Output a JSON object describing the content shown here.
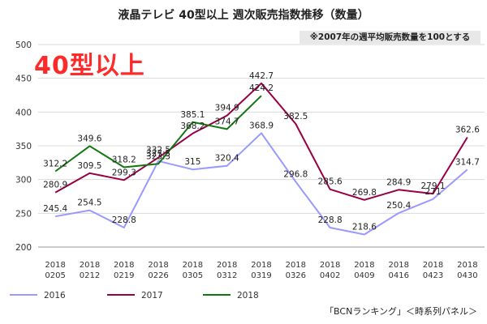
{
  "title": "液晶テレビ 40型以上 週次販売指数推移（数量）",
  "note": "※2007年の週平均販売数量を100とする",
  "big_label": "40型以上",
  "source": "「BCNランキング」＜時系列パネル＞",
  "colors": {
    "2016": "#9999ff",
    "2017": "#990044",
    "2018": "#117711",
    "grid": "#d9d9d9",
    "axis": "#999999"
  },
  "chart_data": {
    "type": "line",
    "title": "液晶テレビ 40型以上 週次販売指数推移（数量）",
    "xlabel": "",
    "ylabel": "",
    "ylim": [
      200,
      500
    ],
    "yticks": [
      200,
      250,
      300,
      350,
      400,
      450,
      500
    ],
    "grid": true,
    "legend": "bottom",
    "categories": [
      [
        "2018",
        "0205"
      ],
      [
        "2018",
        "0212"
      ],
      [
        "2018",
        "0219"
      ],
      [
        "2018",
        "0226"
      ],
      [
        "2018",
        "0305"
      ],
      [
        "2018",
        "0312"
      ],
      [
        "2018",
        "0319"
      ],
      [
        "2018",
        "0326"
      ],
      [
        "2018",
        "0402"
      ],
      [
        "2018",
        "0409"
      ],
      [
        "2018",
        "0416"
      ],
      [
        "2018",
        "0423"
      ],
      [
        "2018",
        "0430"
      ]
    ],
    "series": [
      {
        "name": "2016",
        "values": [
          245.4,
          254.5,
          228.8,
          327.5,
          315,
          320.4,
          368.9,
          296.8,
          228.8,
          218.6,
          250.4,
          271,
          314.7
        ]
      },
      {
        "name": "2017",
        "values": [
          280.9,
          309.5,
          299.3,
          332.5,
          368.2,
          394.9,
          442.7,
          382.5,
          285.6,
          269.8,
          284.9,
          279.1,
          362.6
        ]
      },
      {
        "name": "2018",
        "values": [
          312.2,
          349.6,
          318.2,
          323.3,
          385.1,
          374.7,
          424.2,
          null,
          null,
          null,
          null,
          null,
          null
        ]
      }
    ]
  }
}
